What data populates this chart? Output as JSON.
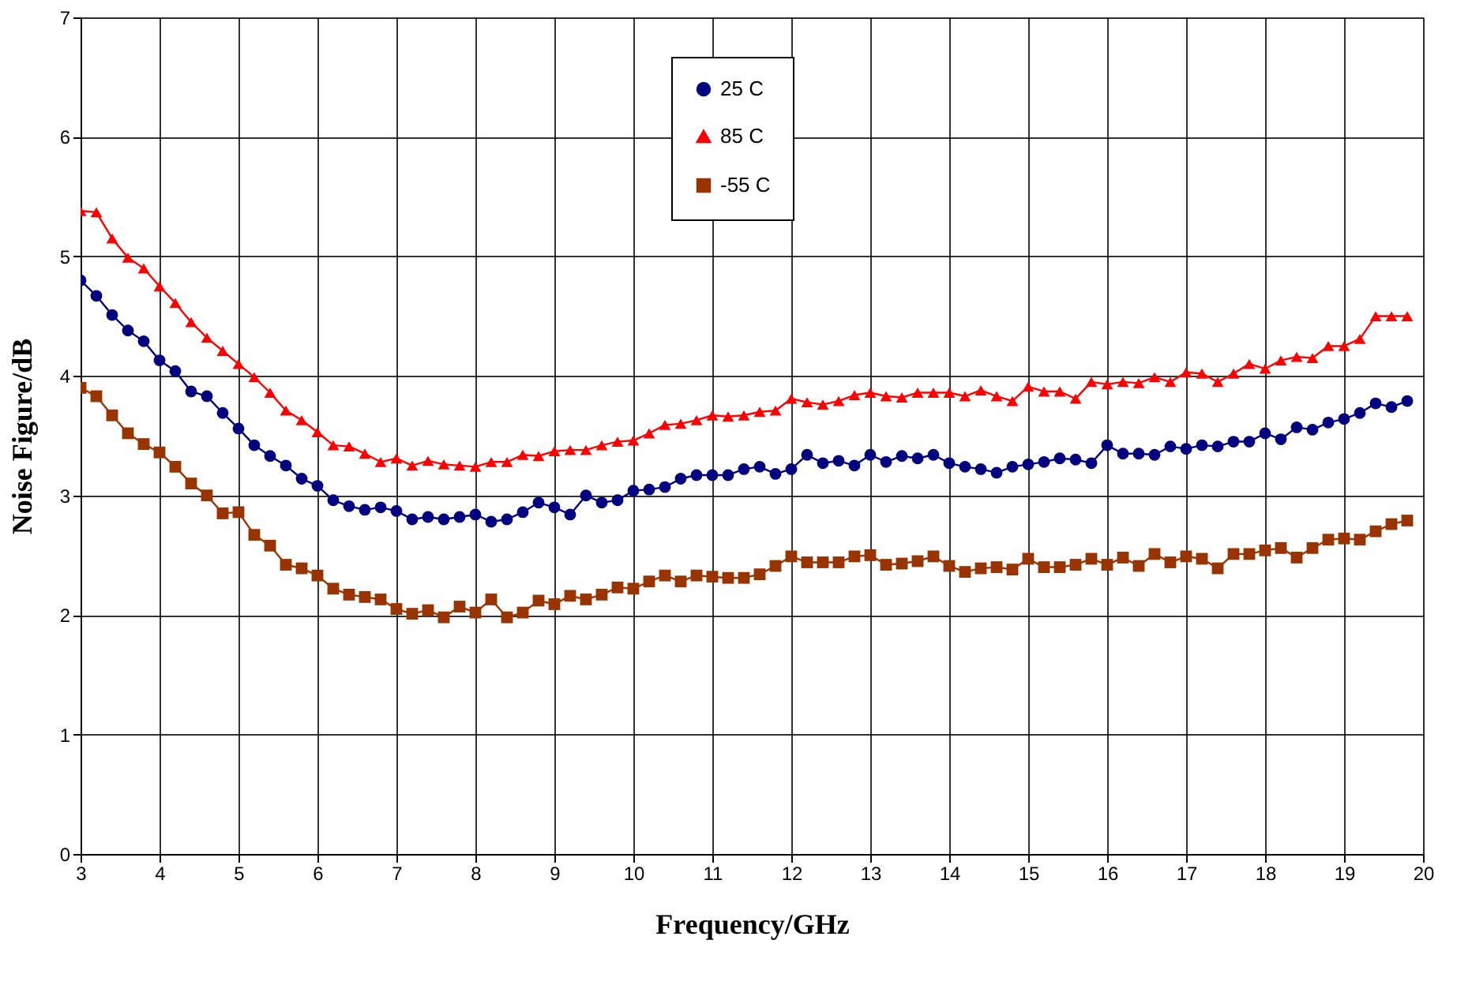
{
  "chart_data": {
    "type": "line",
    "xlabel": "Frequency/GHz",
    "ylabel": "Noise Figure/dB",
    "x": [
      3.0,
      3.2,
      3.4,
      3.6,
      3.8,
      4.0,
      4.2,
      4.4,
      4.6,
      4.8,
      5.0,
      5.2,
      5.4,
      5.6,
      5.8,
      6.0,
      6.2,
      6.4,
      6.6,
      6.8,
      7.0,
      7.2,
      7.4,
      7.6,
      7.8,
      8.0,
      8.2,
      8.4,
      8.6,
      8.8,
      9.0,
      9.2,
      9.4,
      9.6,
      9.8,
      10.0,
      10.2,
      10.4,
      10.6,
      10.8,
      11.0,
      11.2,
      11.4,
      11.6,
      11.8,
      12.0,
      12.2,
      12.4,
      12.6,
      12.8,
      13.0,
      13.2,
      13.4,
      13.6,
      13.8,
      14.0,
      14.2,
      14.4,
      14.6,
      14.8,
      15.0,
      15.2,
      15.4,
      15.6,
      15.8,
      16.0,
      16.2,
      16.4,
      16.6,
      16.8,
      17.0,
      17.2,
      17.4,
      17.6,
      17.8,
      18.0,
      18.2,
      18.4,
      18.6,
      18.8,
      19.0,
      19.2,
      19.4,
      19.6,
      19.8
    ],
    "xlim": [
      3,
      20
    ],
    "xticks": [
      3,
      4,
      5,
      6,
      7,
      8,
      9,
      10,
      11,
      12,
      13,
      14,
      15,
      16,
      17,
      18,
      19,
      20
    ],
    "ylim": [
      0,
      7
    ],
    "yticks": [
      0,
      1,
      2,
      3,
      4,
      5,
      6,
      7
    ],
    "grid": true,
    "legend": "top",
    "series": [
      {
        "name": "25 C",
        "color": "#000080",
        "marker": "circle",
        "values": [
          4.8,
          4.67,
          4.51,
          4.38,
          4.29,
          4.13,
          4.04,
          3.87,
          3.83,
          3.69,
          3.56,
          3.42,
          3.33,
          3.25,
          3.14,
          3.08,
          2.96,
          2.91,
          2.88,
          2.9,
          2.87,
          2.8,
          2.82,
          2.8,
          2.82,
          2.84,
          2.78,
          2.8,
          2.86,
          2.94,
          2.9,
          2.84,
          3.0,
          2.94,
          2.96,
          3.04,
          3.05,
          3.07,
          3.14,
          3.17,
          3.17,
          3.17,
          3.22,
          3.24,
          3.18,
          3.22,
          3.34,
          3.27,
          3.29,
          3.25,
          3.34,
          3.28,
          3.33,
          3.31,
          3.34,
          3.27,
          3.24,
          3.22,
          3.19,
          3.24,
          3.26,
          3.28,
          3.31,
          3.3,
          3.27,
          3.42,
          3.35,
          3.35,
          3.34,
          3.41,
          3.39,
          3.42,
          3.41,
          3.45,
          3.45,
          3.52,
          3.47,
          3.57,
          3.55,
          3.61,
          3.64,
          3.69,
          3.77,
          3.74,
          3.79
        ]
      },
      {
        "name": "85 C",
        "color": "#ff0000",
        "marker": "triangle",
        "values": [
          5.38,
          5.37,
          5.15,
          4.99,
          4.9,
          4.75,
          4.61,
          4.45,
          4.32,
          4.21,
          4.1,
          3.99,
          3.86,
          3.71,
          3.63,
          3.53,
          3.42,
          3.41,
          3.35,
          3.28,
          3.31,
          3.25,
          3.29,
          3.26,
          3.25,
          3.24,
          3.28,
          3.28,
          3.34,
          3.33,
          3.37,
          3.38,
          3.38,
          3.42,
          3.45,
          3.46,
          3.52,
          3.59,
          3.6,
          3.63,
          3.67,
          3.66,
          3.67,
          3.7,
          3.71,
          3.81,
          3.78,
          3.76,
          3.79,
          3.84,
          3.86,
          3.83,
          3.82,
          3.86,
          3.86,
          3.86,
          3.83,
          3.88,
          3.83,
          3.79,
          3.91,
          3.87,
          3.87,
          3.81,
          3.95,
          3.93,
          3.95,
          3.94,
          3.99,
          3.95,
          4.03,
          4.02,
          3.95,
          4.02,
          4.1,
          4.06,
          4.13,
          4.16,
          4.15,
          4.25,
          4.25,
          4.31,
          4.5,
          4.5,
          4.5
        ]
      },
      {
        "name": "-55 C",
        "color": "#993300",
        "marker": "square",
        "values": [
          3.9,
          3.83,
          3.67,
          3.52,
          3.43,
          3.36,
          3.24,
          3.1,
          3.0,
          2.85,
          2.86,
          2.67,
          2.58,
          2.42,
          2.39,
          2.33,
          2.22,
          2.17,
          2.15,
          2.13,
          2.05,
          2.01,
          2.04,
          1.98,
          2.07,
          2.02,
          2.13,
          1.98,
          2.02,
          2.12,
          2.09,
          2.16,
          2.13,
          2.17,
          2.23,
          2.22,
          2.28,
          2.33,
          2.28,
          2.33,
          2.32,
          2.31,
          2.31,
          2.34,
          2.41,
          2.49,
          2.44,
          2.44,
          2.44,
          2.49,
          2.5,
          2.42,
          2.43,
          2.45,
          2.49,
          2.41,
          2.36,
          2.39,
          2.4,
          2.38,
          2.47,
          2.4,
          2.4,
          2.42,
          2.47,
          2.42,
          2.48,
          2.41,
          2.51,
          2.44,
          2.49,
          2.47,
          2.39,
          2.51,
          2.51,
          2.54,
          2.56,
          2.48,
          2.56,
          2.63,
          2.64,
          2.63,
          2.7,
          2.76,
          2.79
        ]
      }
    ]
  }
}
